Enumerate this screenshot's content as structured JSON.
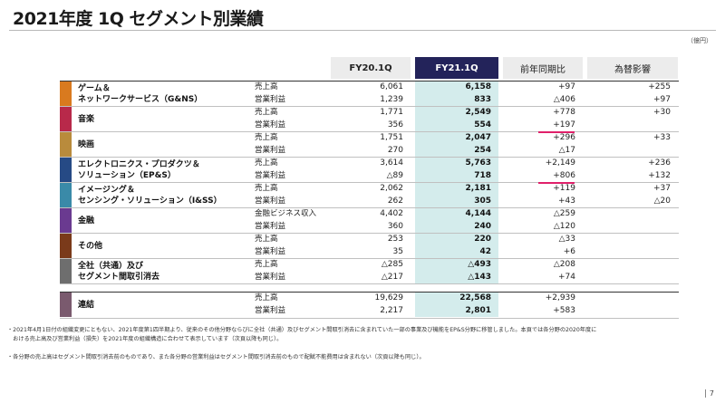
{
  "title": "2021年度 1Q セグメント別業績",
  "unit": "（億円）",
  "columns": {
    "fy20": "FY20.1Q",
    "fy21": "FY21.1Q",
    "yoy": "前年同期比",
    "fx": "為替影響"
  },
  "colors": {
    "gns": "#d97a1f",
    "music": "#b8294a",
    "movie": "#b98b3c",
    "eps": "#264a85",
    "iss": "#3a8aa8",
    "fin": "#6a3a90",
    "other": "#7a3a1a",
    "corp": "#6e6e6e",
    "total": "#7a5a6e",
    "fy21_header": "#23235a",
    "fy21_band": "#d4ecec",
    "highlight": "#e0206a"
  },
  "segments": [
    {
      "id": "gns",
      "name1": "ゲーム＆",
      "name2": "ネットワークサービス（G&NS）",
      "rows": [
        {
          "label": "売上高",
          "fy20": "6,061",
          "fy21": "6,158",
          "yoy": "+97",
          "fx": "+255"
        },
        {
          "label": "営業利益",
          "fy20": "1,239",
          "fy21": "833",
          "yoy": "△406",
          "fx": "+97"
        }
      ]
    },
    {
      "id": "music",
      "name1": "音楽",
      "name2": "",
      "rows": [
        {
          "label": "売上高",
          "fy20": "1,771",
          "fy21": "2,549",
          "yoy": "+778",
          "fx": "+30"
        },
        {
          "label": "営業利益",
          "fy20": "356",
          "fy21": "554",
          "yoy": "+197",
          "fx": ""
        }
      ]
    },
    {
      "id": "movie",
      "name1": "映画",
      "name2": "",
      "rows": [
        {
          "label": "売上高",
          "fy20": "1,751",
          "fy21": "2,047",
          "yoy": "+296",
          "fx": "+33"
        },
        {
          "label": "営業利益",
          "fy20": "270",
          "fy21": "254",
          "yoy": "△17",
          "fx": ""
        }
      ]
    },
    {
      "id": "eps",
      "name1": "エレクトロニクス・プロダクツ＆",
      "name2": "ソリューション（EP&S）",
      "rows": [
        {
          "label": "売上高",
          "fy20": "3,614",
          "fy21": "5,763",
          "yoy": "+2,149",
          "fx": "+236"
        },
        {
          "label": "営業利益",
          "fy20": "△89",
          "fy21": "718",
          "yoy": "+806",
          "fx": "+132"
        }
      ]
    },
    {
      "id": "iss",
      "name1": "イメージング＆",
      "name2": "センシング・ソリューション（I&SS）",
      "rows": [
        {
          "label": "売上高",
          "fy20": "2,062",
          "fy21": "2,181",
          "yoy": "+119",
          "fx": "+37"
        },
        {
          "label": "営業利益",
          "fy20": "262",
          "fy21": "305",
          "yoy": "+43",
          "fx": "△20"
        }
      ]
    },
    {
      "id": "fin",
      "name1": "金融",
      "name2": "",
      "rows": [
        {
          "label": "金融ビジネス収入",
          "fy20": "4,402",
          "fy21": "4,144",
          "yoy": "△259",
          "fx": ""
        },
        {
          "label": "営業利益",
          "fy20": "360",
          "fy21": "240",
          "yoy": "△120",
          "fx": ""
        }
      ]
    },
    {
      "id": "other",
      "name1": "その他",
      "name2": "",
      "rows": [
        {
          "label": "売上高",
          "fy20": "253",
          "fy21": "220",
          "yoy": "△33",
          "fx": ""
        },
        {
          "label": "営業利益",
          "fy20": "35",
          "fy21": "42",
          "yoy": "+6",
          "fx": ""
        }
      ]
    },
    {
      "id": "corp",
      "name1": "全社（共通）及び",
      "name2": "セグメント間取引消去",
      "rows": [
        {
          "label": "売上高",
          "fy20": "△285",
          "fy21": "△493",
          "yoy": "△208",
          "fx": ""
        },
        {
          "label": "営業利益",
          "fy20": "△217",
          "fy21": "△143",
          "yoy": "+74",
          "fx": ""
        }
      ]
    }
  ],
  "total": {
    "name": "連結",
    "rows": [
      {
        "label": "売上高",
        "fy20": "19,629",
        "fy21": "22,568",
        "yoy": "+2,939",
        "fx": ""
      },
      {
        "label": "営業利益",
        "fy20": "2,217",
        "fy21": "2,801",
        "yoy": "+583",
        "fx": ""
      }
    ]
  },
  "notes": [
    "・2021年4月1日付の組織変更にともない、2021年度第1四半期より、従来のその他分野ならびに全社（共通）及びセグメント間取引消去に含まれていた一部の事業及び機能をEP&S分野に移管しました。本頁では各分野の2020年度に",
    "　おける売上高及び営業利益（損失）を2021年度の組織構造に合わせて表示しています（次頁以降も同じ）。",
    "・各分野の売上高はセグメント間取引消去前のものであり、また各分野の営業利益はセグメント間取引消去前のもので配賦不能費用は含まれない（次頁以降も同じ）。"
  ],
  "page_number": "7"
}
